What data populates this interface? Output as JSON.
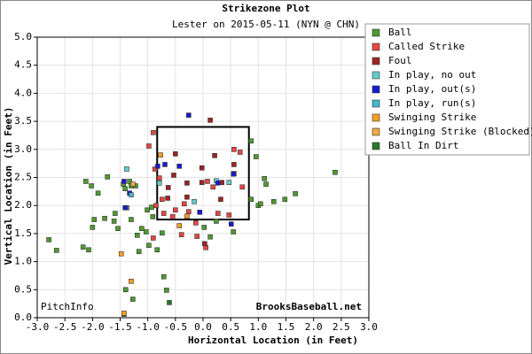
{
  "chart_data": {
    "type": "scatter",
    "title": "Strikezone Plot",
    "subtitle": "Lester on 2015-05-11 (NYN @ CHN)",
    "x_label": "Horizontal Location (in Feet)",
    "y_label": "Vertical Location (in Feet)",
    "watermarks": [
      "PitchInfo",
      "BrooksBaseball.net"
    ],
    "xlim": [
      -3,
      3
    ],
    "ylim": [
      0,
      5
    ],
    "xticks": [
      {
        "value": -3,
        "label": "-3.0"
      },
      -2.5,
      {
        "value": -2,
        "label": "-2.0"
      },
      -1.5,
      {
        "value": -1,
        "label": "-1.0"
      },
      -0.5,
      {
        "value": 0,
        "label": "0.0"
      },
      0.5,
      {
        "value": 1,
        "label": "1.0"
      },
      1.5,
      {
        "value": 2,
        "label": "2.0"
      },
      2.5,
      {
        "value": 3,
        "label": "3.0"
      }
    ],
    "yticks": [
      {
        "value": 0,
        "label": "0.0"
      },
      0.5,
      {
        "value": 1,
        "label": "1.0"
      },
      1.5,
      {
        "value": 2,
        "label": "2.0"
      },
      2.5,
      {
        "value": 3,
        "label": "3.0"
      },
      3.5,
      {
        "value": 4,
        "label": "4.0"
      },
      4.5,
      {
        "value": 5,
        "label": "5.0"
      }
    ],
    "grid": true,
    "legend": "upper right",
    "strike_zone": {
      "x": [
        -0.83,
        0.83
      ],
      "y": [
        1.75,
        3.4
      ]
    },
    "series": [
      {
        "name": "Ball",
        "color": "#4f9a2f",
        "x": [
          -2.79,
          -2.65,
          -2.12,
          -2.02,
          -2.17,
          -2.07,
          -1.97,
          -2.0,
          -1.9,
          -1.78,
          -1.73,
          -1.59,
          -1.61,
          -1.54,
          -1.44,
          -1.41,
          -1.33,
          -1.3,
          -1.38,
          -1.3,
          -1.19,
          -1.22,
          -1.11,
          -1.03,
          -1.01,
          -0.91,
          -0.93,
          -0.98,
          -1.16,
          -0.83,
          -0.71,
          -0.66,
          -1.4,
          -1.27,
          -1.43,
          0.87,
          0.96,
          1.11,
          1.14,
          0.87,
          1.0,
          1.04,
          1.28,
          1.48,
          1.67,
          2.39,
          0.55,
          0.02,
          0.13,
          0.24,
          -0.74
        ],
        "y": [
          1.39,
          1.2,
          2.43,
          2.35,
          1.26,
          1.21,
          1.75,
          1.61,
          2.22,
          1.77,
          2.51,
          1.86,
          1.72,
          1.59,
          2.38,
          2.3,
          2.43,
          2.35,
          1.96,
          1.75,
          1.47,
          2.35,
          1.59,
          1.53,
          1.92,
          1.8,
          1.97,
          1.29,
          1.18,
          1.21,
          0.73,
          0.49,
          0.5,
          0.33,
          0.06,
          3.15,
          2.87,
          2.48,
          2.38,
          2.11,
          2.0,
          2.03,
          2.07,
          2.11,
          2.21,
          2.59,
          1.53,
          1.61,
          1.44,
          1.72,
          1.51
        ]
      },
      {
        "name": "Called Strike",
        "color": "#e84545",
        "x": [
          -0.9,
          -0.98,
          -0.87,
          -0.79,
          -0.85,
          -0.74,
          -0.71,
          -0.5,
          -0.26,
          -0.34,
          0.27,
          0.47,
          0.56,
          0.67,
          0.56,
          0.71,
          0.18,
          -0.39,
          -0.11,
          0.05,
          -0.55,
          0.08,
          -0.9,
          -0.13
        ],
        "y": [
          3.3,
          3.06,
          2.65,
          2.49,
          2.0,
          2.11,
          1.86,
          1.92,
          1.89,
          2.03,
          1.86,
          1.83,
          3.0,
          2.95,
          2.57,
          2.33,
          2.33,
          1.48,
          1.45,
          1.25,
          1.8,
          2.43,
          1.42,
          1.69
        ]
      },
      {
        "name": "Foul",
        "color": "#a02222",
        "x": [
          0.13,
          -0.5,
          -0.02,
          0.21,
          -0.29,
          -0.63,
          -0.53,
          0.34,
          -0.02,
          0.56,
          0.03,
          -0.29,
          -0.64,
          0.32
        ],
        "y": [
          3.52,
          2.92,
          2.67,
          2.89,
          2.4,
          2.32,
          2.54,
          2.41,
          2.41,
          2.73,
          1.32,
          2.15,
          2.13,
          2.11
        ]
      },
      {
        "name": "In play, no out",
        "color": "#66cccc",
        "x": [
          -1.38,
          -0.16,
          0.24,
          0.47,
          -0.79
        ],
        "y": [
          2.65,
          2.07,
          2.44,
          2.41,
          2.4
        ]
      },
      {
        "name": "In play, out(s)",
        "color": "#1a1ad0",
        "x": [
          -0.26,
          -0.82,
          -0.69,
          -0.43,
          -1.43,
          -1.33,
          -1.41,
          -0.06,
          0.51,
          0.55,
          0.27
        ],
        "y": [
          3.61,
          2.7,
          2.73,
          2.7,
          2.43,
          2.22,
          1.96,
          1.88,
          1.67,
          2.56,
          2.4
        ]
      },
      {
        "name": "In play, run(s)",
        "color": "#44b8cc",
        "x": [
          -1.3
        ],
        "y": [
          2.19
        ]
      },
      {
        "name": "Swinging Strike",
        "color": "#f5a020",
        "x": [
          -1.48,
          -1.3,
          -1.43,
          -0.29,
          -0.43,
          -0.77
        ],
        "y": [
          1.14,
          0.65,
          0.08,
          1.81,
          1.64,
          2.9
        ]
      },
      {
        "name": "Swinging Strike (Blocked)",
        "color": "#f0aa44",
        "x": [
          -1.27
        ],
        "y": [
          2.38
        ]
      },
      {
        "name": "Ball In Dirt",
        "color": "#2a7a2a",
        "x": [
          -0.61
        ],
        "y": [
          0.27
        ]
      }
    ]
  }
}
